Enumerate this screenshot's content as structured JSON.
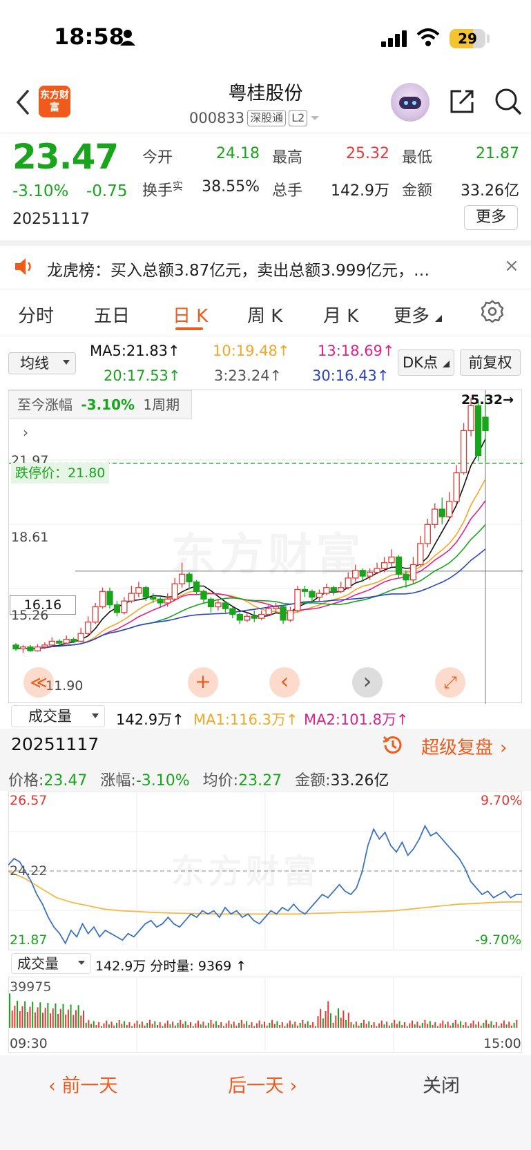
{
  "status_bar": {
    "time": "18:58",
    "battery": "29"
  },
  "header": {
    "logo_text": "东方财富",
    "title": "粤桂股份",
    "code": "000833",
    "tags": [
      "深股通",
      "L2"
    ]
  },
  "quote": {
    "price": "23.47",
    "change_pct": "-3.10%",
    "change_amt": "-0.75",
    "date": "20251117",
    "fields": [
      {
        "label": "今开",
        "value": "24.18",
        "color": "#18a51c"
      },
      {
        "label": "最高",
        "value": "25.32",
        "color": "#e53935"
      },
      {
        "label": "最低",
        "value": "21.87",
        "color": "#18a51c"
      },
      {
        "label": "换手",
        "sup": "实",
        "value": "38.55%",
        "color": "#222222"
      },
      {
        "label": "总手",
        "value": "142.9万",
        "color": "#222222"
      },
      {
        "label": "金额",
        "value": "33.26亿",
        "color": "#222222"
      }
    ],
    "more_label": "更多"
  },
  "banner": {
    "text": "龙虎榜：买入总额3.87亿元，卖出总额3.999亿元，…",
    "close": "×"
  },
  "tabs": [
    {
      "label": "分时"
    },
    {
      "label": "五日"
    },
    {
      "label": "日 K"
    },
    {
      "label": "周 K"
    },
    {
      "label": "月 K"
    },
    {
      "label": "更多"
    }
  ],
  "ma_bar": {
    "select_label": "均线",
    "items": [
      {
        "text": "MA5:21.83↑",
        "color": "#111111"
      },
      {
        "text": "10:19.48↑",
        "color": "#f5a623"
      },
      {
        "text": "13:18.69↑",
        "color": "#e0208c"
      },
      {
        "text": "20:17.53↑",
        "color": "#18a51c"
      },
      {
        "text": "3:23.24↑",
        "color": "#555555"
      },
      {
        "text": "30:16.43↑",
        "color": "#2a43c8"
      }
    ],
    "dk_label": "DK点",
    "fq_label": "前复权"
  },
  "kline": {
    "period_text": "至今涨幅",
    "period_pct": "-3.10%",
    "period_unit": "1周期",
    "high_label": "25.32→",
    "levels": [
      "21.97",
      "18.61",
      "15.26",
      "11.90"
    ],
    "limit_down": "跌停价：21.80",
    "crosshair_value": "16.16",
    "watermark": "东方财富",
    "chart_data": {
      "type": "candlestick",
      "ylim": [
        11.9,
        25.32
      ],
      "candles": [
        [
          12.3,
          12.1,
          12.4,
          12.0
        ],
        [
          12.1,
          12.2,
          12.3,
          11.9
        ],
        [
          12.2,
          12.0,
          12.3,
          11.95
        ],
        [
          12.0,
          12.2,
          12.35,
          11.95
        ],
        [
          12.2,
          12.3,
          12.45,
          12.1
        ],
        [
          12.3,
          12.5,
          12.7,
          12.2
        ],
        [
          12.5,
          12.4,
          12.6,
          12.3
        ],
        [
          12.4,
          12.6,
          12.8,
          12.35
        ],
        [
          12.6,
          12.5,
          12.7,
          12.4
        ],
        [
          12.5,
          12.9,
          13.2,
          12.45
        ],
        [
          12.9,
          13.5,
          13.8,
          12.8
        ],
        [
          13.5,
          14.3,
          14.5,
          13.4
        ],
        [
          14.3,
          15.1,
          15.3,
          14.2
        ],
        [
          15.1,
          14.4,
          15.3,
          14.2
        ],
        [
          14.4,
          14.0,
          14.6,
          13.8
        ],
        [
          14.0,
          14.6,
          14.8,
          13.9
        ],
        [
          14.6,
          15.0,
          15.4,
          14.5
        ],
        [
          15.0,
          15.3,
          15.6,
          14.8
        ],
        [
          15.3,
          14.8,
          15.4,
          14.6
        ],
        [
          14.8,
          14.7,
          15.0,
          14.5
        ],
        [
          14.7,
          14.5,
          14.8,
          14.3
        ],
        [
          14.5,
          14.7,
          15.0,
          14.3
        ],
        [
          14.7,
          15.5,
          15.8,
          14.6
        ],
        [
          15.5,
          16.0,
          16.6,
          15.3
        ],
        [
          16.0,
          15.6,
          16.1,
          15.2
        ],
        [
          15.6,
          15.1,
          15.7,
          14.9
        ],
        [
          15.1,
          14.7,
          15.2,
          14.5
        ],
        [
          14.7,
          14.3,
          14.8,
          14.0
        ],
        [
          14.3,
          14.5,
          14.7,
          14.1
        ],
        [
          14.5,
          14.2,
          14.6,
          14.0
        ],
        [
          14.2,
          13.9,
          14.3,
          13.7
        ],
        [
          13.9,
          13.6,
          14.0,
          13.4
        ],
        [
          13.6,
          13.8,
          14.0,
          13.5
        ],
        [
          13.8,
          13.7,
          14.1,
          13.5
        ],
        [
          13.7,
          13.9,
          14.1,
          13.6
        ],
        [
          13.9,
          14.2,
          14.4,
          13.8
        ],
        [
          14.2,
          14.3,
          14.5,
          14.0
        ],
        [
          14.3,
          13.6,
          14.4,
          13.4
        ],
        [
          13.6,
          14.1,
          14.3,
          13.5
        ],
        [
          14.1,
          15.2,
          15.4,
          14.0
        ],
        [
          15.2,
          15.1,
          15.4,
          14.8
        ],
        [
          15.1,
          14.8,
          15.2,
          14.5
        ],
        [
          14.8,
          15.0,
          15.2,
          14.6
        ],
        [
          15.0,
          15.3,
          15.5,
          14.9
        ],
        [
          15.3,
          15.1,
          15.4,
          14.9
        ],
        [
          15.1,
          15.3,
          15.6,
          15.0
        ],
        [
          15.3,
          15.8,
          16.1,
          15.2
        ],
        [
          15.8,
          16.2,
          16.5,
          15.6
        ],
        [
          16.2,
          15.9,
          16.3,
          15.6
        ],
        [
          15.9,
          16.1,
          16.3,
          15.7
        ],
        [
          16.1,
          16.3,
          16.6,
          16.0
        ],
        [
          16.3,
          16.6,
          16.9,
          16.1
        ],
        [
          16.6,
          16.9,
          17.3,
          16.4
        ],
        [
          16.9,
          16.0,
          17.0,
          15.8
        ],
        [
          16.0,
          15.7,
          16.2,
          15.3
        ],
        [
          15.7,
          16.5,
          16.9,
          15.5
        ],
        [
          16.5,
          17.6,
          18.0,
          16.4
        ],
        [
          17.6,
          18.6,
          18.9,
          17.4
        ],
        [
          18.6,
          19.4,
          19.7,
          18.4
        ],
        [
          19.4,
          19.0,
          20.0,
          18.6
        ],
        [
          19.0,
          19.8,
          20.3,
          18.8
        ],
        [
          19.8,
          21.3,
          21.7,
          19.7
        ],
        [
          21.3,
          23.5,
          23.9,
          21.2
        ],
        [
          23.5,
          24.8,
          25.2,
          23.2
        ],
        [
          24.8,
          22.2,
          25.0,
          21.9
        ],
        [
          24.2,
          23.5,
          25.32,
          21.87
        ]
      ],
      "ma_colors": [
        "#111111",
        "#f5a623",
        "#e0208c",
        "#18a51c",
        "#2a43c8"
      ]
    },
    "nav_labels": [
      "≪",
      "+",
      "‹",
      "›",
      "⤢"
    ]
  },
  "volume_bar": {
    "select_label": "成交量",
    "value": "142.9万↑",
    "ma1": "MA1:116.3万↑",
    "ma2": "MA2:101.8万↑"
  },
  "intraday": {
    "date": "20251117",
    "replay_label": "超级复盘",
    "price_label": "价格:",
    "price": "23.47",
    "pct_label": "涨幅:",
    "pct": "-3.10%",
    "avg_label": "均价:",
    "avg": "23.27",
    "amount_label": "金额:",
    "amount": "33.26亿",
    "top_left": "26.57",
    "mid_left": "24.22",
    "bot_left": "21.87",
    "top_right": "9.70%",
    "bot_right": "-9.70%",
    "watermark": "东方财富",
    "chart_data": {
      "type": "line",
      "ylim": [
        21.87,
        26.57
      ],
      "prev_close": 24.22,
      "price": [
        24.4,
        24.6,
        24.5,
        24.2,
        23.9,
        23.5,
        23.2,
        22.8,
        22.5,
        22.3,
        22.0,
        22.4,
        22.2,
        22.6,
        22.3,
        22.5,
        22.2,
        22.4,
        22.3,
        22.2,
        22.1,
        22.3,
        22.2,
        22.4,
        22.6,
        22.7,
        22.5,
        22.6,
        22.8,
        22.6,
        22.5,
        22.7,
        22.9,
        22.8,
        23.0,
        22.9,
        23.0,
        22.8,
        23.1,
        22.9,
        23.0,
        22.8,
        22.9,
        22.7,
        22.6,
        22.8,
        23.0,
        22.9,
        23.1,
        23.0,
        23.2,
        23.0,
        22.9,
        23.1,
        23.3,
        23.5,
        23.4,
        23.6,
        23.8,
        23.6,
        23.5,
        23.7,
        24.2,
        25.0,
        25.5,
        25.2,
        25.4,
        25.0,
        24.8,
        25.1,
        24.7,
        24.9,
        25.2,
        25.6,
        25.3,
        25.4,
        25.2,
        25.0,
        24.8,
        24.6,
        24.3,
        23.9,
        23.7,
        23.5,
        23.6,
        23.4,
        23.5,
        23.6,
        23.4,
        23.5,
        23.5
      ],
      "avg": [
        24.2,
        24.0,
        23.7,
        23.4,
        23.25,
        23.15,
        23.05,
        23.0,
        22.98,
        22.95,
        22.93,
        22.92,
        22.91,
        22.9,
        22.9,
        22.9,
        22.9,
        22.9,
        22.9,
        22.92,
        22.93,
        22.95,
        22.96,
        22.98,
        23.0,
        23.05,
        23.1,
        23.15,
        23.2,
        23.22,
        23.25,
        23.27,
        23.27
      ]
    },
    "vol_select_label": "成交量",
    "vol_text": "142.9万 分时量: 9369 ↑",
    "vol_max": "39975",
    "time_start": "09:30",
    "time_end": "15:00"
  },
  "footer": {
    "prev": "前一天",
    "next": "后一天",
    "close": "关闭"
  }
}
